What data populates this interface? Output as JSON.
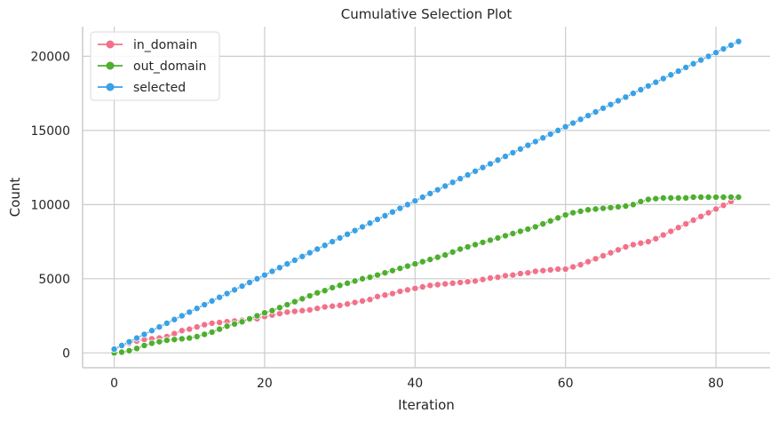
{
  "chart_data": {
    "type": "line",
    "title": "Cumulative Selection Plot",
    "xlabel": "Iteration",
    "ylabel": "Count",
    "xlim": [
      -4.2,
      87.2
    ],
    "ylim": [
      -1000,
      22000
    ],
    "xticks": [
      0,
      20,
      40,
      60,
      80
    ],
    "yticks": [
      0,
      5000,
      10000,
      15000,
      20000
    ],
    "grid": true,
    "legend_position": "top-left",
    "x_start": 0,
    "series": [
      {
        "name": "in_domain",
        "color": "#f0728a",
        "values": [
          250,
          500,
          650,
          800,
          900,
          950,
          1000,
          1100,
          1300,
          1500,
          1600,
          1750,
          1900,
          2000,
          2050,
          2100,
          2150,
          2200,
          2250,
          2300,
          2450,
          2550,
          2650,
          2750,
          2800,
          2850,
          2900,
          3000,
          3100,
          3150,
          3200,
          3300,
          3400,
          3500,
          3600,
          3800,
          3900,
          4000,
          4150,
          4250,
          4350,
          4450,
          4550,
          4600,
          4650,
          4700,
          4750,
          4800,
          4850,
          4950,
          5050,
          5100,
          5200,
          5250,
          5350,
          5400,
          5500,
          5550,
          5600,
          5650,
          5650,
          5800,
          5950,
          6150,
          6350,
          6550,
          6750,
          6950,
          7150,
          7300,
          7400,
          7500,
          7700,
          7950,
          8200,
          8450,
          8700,
          8950,
          9200,
          9450,
          9700,
          9950,
          10200,
          10500
        ]
      },
      {
        "name": "out_domain",
        "color": "#4eae2f",
        "values": [
          0,
          50,
          150,
          300,
          500,
          650,
          750,
          850,
          900,
          950,
          1000,
          1100,
          1250,
          1400,
          1600,
          1800,
          1950,
          2100,
          2300,
          2500,
          2700,
          2850,
          3050,
          3250,
          3450,
          3650,
          3850,
          4050,
          4200,
          4400,
          4550,
          4700,
          4850,
          5000,
          5100,
          5250,
          5400,
          5550,
          5700,
          5850,
          6000,
          6150,
          6300,
          6450,
          6600,
          6800,
          7000,
          7150,
          7300,
          7450,
          7600,
          7750,
          7900,
          8050,
          8200,
          8350,
          8500,
          8700,
          8900,
          9100,
          9300,
          9450,
          9550,
          9650,
          9700,
          9750,
          9800,
          9850,
          9900,
          10000,
          10200,
          10350,
          10400,
          10450,
          10450,
          10450,
          10450,
          10500,
          10500,
          10500,
          10500,
          10500,
          10500,
          10500
        ]
      },
      {
        "name": "selected",
        "color": "#3aa1e4",
        "values": [
          250,
          500,
          750,
          1000,
          1250,
          1500,
          1750,
          2000,
          2250,
          2500,
          2750,
          3000,
          3250,
          3500,
          3750,
          4000,
          4250,
          4500,
          4750,
          5000,
          5250,
          5500,
          5750,
          6000,
          6250,
          6500,
          6750,
          7000,
          7250,
          7500,
          7750,
          8000,
          8250,
          8500,
          8750,
          9000,
          9250,
          9500,
          9750,
          10000,
          10250,
          10500,
          10750,
          11000,
          11250,
          11500,
          11750,
          12000,
          12250,
          12500,
          12750,
          13000,
          13250,
          13500,
          13750,
          14000,
          14250,
          14500,
          14750,
          15000,
          15250,
          15500,
          15750,
          16000,
          16250,
          16500,
          16750,
          17000,
          17250,
          17500,
          17750,
          18000,
          18250,
          18500,
          18750,
          19000,
          19250,
          19500,
          19750,
          20000,
          20250,
          20500,
          20750,
          21000
        ]
      }
    ]
  }
}
